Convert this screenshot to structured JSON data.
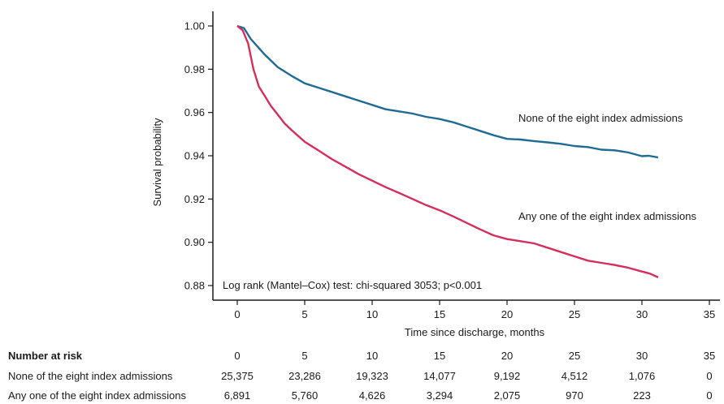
{
  "chart_data": {
    "type": "line",
    "xlabel": "Time since discharge, months",
    "ylabel": "Survival probability",
    "xlim": [
      0,
      35
    ],
    "ylim": [
      0.88,
      1.0
    ],
    "xticks": [
      "0",
      "5",
      "10",
      "15",
      "20",
      "25",
      "30",
      "35"
    ],
    "yticks": [
      "0.88",
      "0.90",
      "0.92",
      "0.94",
      "0.96",
      "0.98",
      "1.00"
    ],
    "grid": false,
    "annotation": "Log rank (Mantel–Cox) test: chi-squared 3053; p<0.001",
    "series": [
      {
        "name": "None of the eight index admissions",
        "color": "#1f6b96",
        "points": [
          [
            0,
            1.0
          ],
          [
            0.5,
            0.999
          ],
          [
            1,
            0.994
          ],
          [
            2,
            0.987
          ],
          [
            3,
            0.981
          ],
          [
            4,
            0.977
          ],
          [
            5,
            0.9735
          ],
          [
            6,
            0.9715
          ],
          [
            7,
            0.9695
          ],
          [
            8,
            0.9675
          ],
          [
            9,
            0.9655
          ],
          [
            10,
            0.9635
          ],
          [
            11,
            0.9615
          ],
          [
            12,
            0.9605
          ],
          [
            13,
            0.9595
          ],
          [
            14,
            0.958
          ],
          [
            15,
            0.957
          ],
          [
            16,
            0.9555
          ],
          [
            17,
            0.9535
          ],
          [
            18,
            0.9515
          ],
          [
            19,
            0.9495
          ],
          [
            20,
            0.9478
          ],
          [
            21,
            0.9475
          ],
          [
            22,
            0.9468
          ],
          [
            23,
            0.9462
          ],
          [
            24,
            0.9455
          ],
          [
            25,
            0.9445
          ],
          [
            26,
            0.944
          ],
          [
            27,
            0.9428
          ],
          [
            28,
            0.9425
          ],
          [
            29,
            0.9415
          ],
          [
            30,
            0.9398
          ],
          [
            30.5,
            0.94
          ],
          [
            31.2,
            0.9392
          ]
        ]
      },
      {
        "name": "Any one of the eight index admissions",
        "color": "#d42e5b",
        "points": [
          [
            0,
            1.0
          ],
          [
            0.4,
            0.998
          ],
          [
            0.8,
            0.992
          ],
          [
            1.2,
            0.98
          ],
          [
            1.6,
            0.972
          ],
          [
            2,
            0.968
          ],
          [
            2.5,
            0.963
          ],
          [
            3,
            0.959
          ],
          [
            3.5,
            0.955
          ],
          [
            4,
            0.952
          ],
          [
            5,
            0.9465
          ],
          [
            6,
            0.9425
          ],
          [
            7,
            0.9385
          ],
          [
            8,
            0.935
          ],
          [
            9,
            0.9315
          ],
          [
            10,
            0.9285
          ],
          [
            11,
            0.9255
          ],
          [
            12,
            0.9228
          ],
          [
            13,
            0.92
          ],
          [
            14,
            0.9172
          ],
          [
            15,
            0.9148
          ],
          [
            16,
            0.912
          ],
          [
            17,
            0.909
          ],
          [
            18,
            0.906
          ],
          [
            19,
            0.9032
          ],
          [
            20,
            0.9015
          ],
          [
            21,
            0.9005
          ],
          [
            22,
            0.8995
          ],
          [
            23,
            0.8975
          ],
          [
            24,
            0.8955
          ],
          [
            25,
            0.8935
          ],
          [
            26,
            0.8915
          ],
          [
            27,
            0.8905
          ],
          [
            28,
            0.8895
          ],
          [
            29,
            0.8882
          ],
          [
            30,
            0.8865
          ],
          [
            30.6,
            0.8855
          ],
          [
            31.2,
            0.8838
          ]
        ]
      }
    ],
    "risk_table": {
      "title": "Number at risk",
      "times": [
        "0",
        "5",
        "10",
        "15",
        "20",
        "25",
        "30",
        "35"
      ],
      "rows": [
        {
          "label": "None of the eight index admissions",
          "values": [
            "25,375",
            "23,286",
            "19,323",
            "14,077",
            "9,192",
            "4,512",
            "1,076",
            "0"
          ]
        },
        {
          "label": "Any one of the eight index admissions",
          "values": [
            "6,891",
            "5,760",
            "4,626",
            "3,294",
            "2,075",
            "970",
            "223",
            "0"
          ]
        }
      ]
    }
  }
}
